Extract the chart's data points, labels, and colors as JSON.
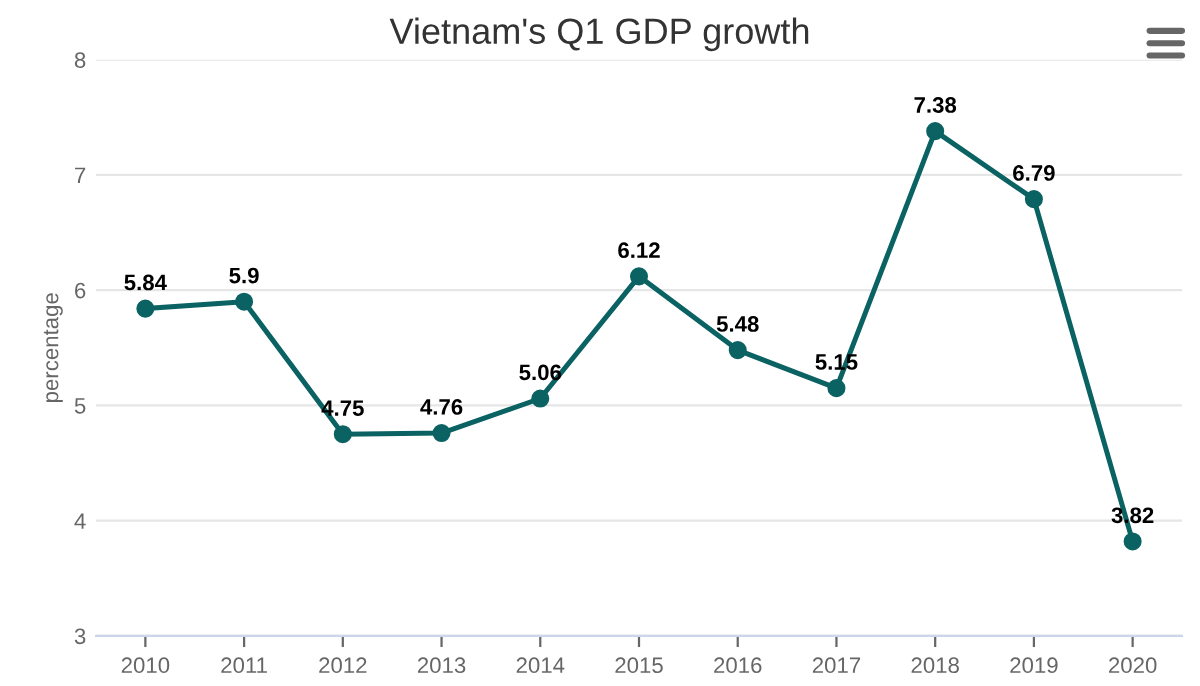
{
  "chart_data": {
    "type": "line",
    "title": "Vietnam's Q1 GDP growth",
    "ylabel": "percentage",
    "categories": [
      "2010",
      "2011",
      "2012",
      "2013",
      "2014",
      "2015",
      "2016",
      "2017",
      "2018",
      "2019",
      "2020"
    ],
    "series": [
      {
        "color": "#0b6263",
        "values": [
          5.84,
          5.9,
          4.75,
          4.76,
          5.06,
          6.12,
          5.48,
          5.15,
          7.38,
          6.79,
          3.82
        ]
      }
    ],
    "ylim": [
      3,
      8
    ],
    "yticks": [
      3,
      4,
      5,
      6,
      7,
      8
    ],
    "grid": "y",
    "marker": "circle",
    "line_style": "solid",
    "data_labels": true,
    "legend": false
  }
}
